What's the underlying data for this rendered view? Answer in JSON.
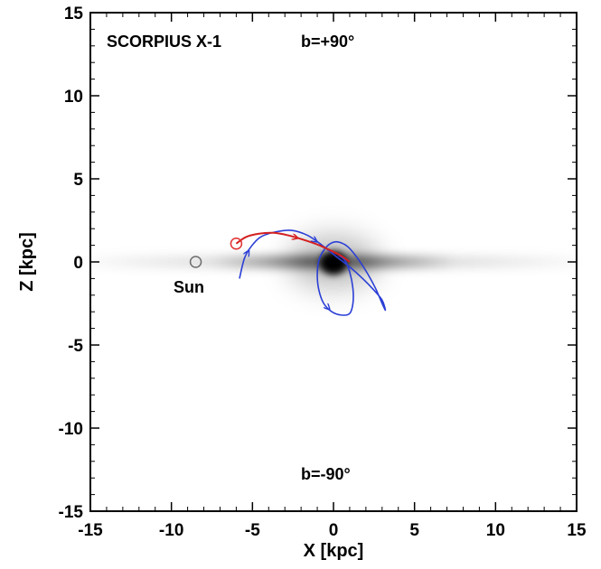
{
  "chart_data": {
    "type": "line",
    "title": "",
    "xlabel": "X [kpc]",
    "ylabel": "Z [kpc]",
    "xlim": [
      -15,
      15
    ],
    "ylim": [
      -15,
      15
    ],
    "x_ticks": [
      -15,
      -10,
      -5,
      0,
      5,
      10,
      15
    ],
    "y_ticks": [
      -15,
      -10,
      -5,
      0,
      5,
      10,
      15
    ],
    "x_tick_labels": [
      "-15",
      "-10",
      "-5",
      "0",
      "5",
      "10",
      "15"
    ],
    "y_tick_labels": [
      "-15",
      "-10",
      "-5",
      "0",
      "5",
      "10",
      "15"
    ],
    "grid": false,
    "background": "grayscale galactic density image: thin disk along Z = 0 with dark bulge at the center",
    "annotations": [
      {
        "text": "SCORPIUS X-1",
        "x": -10.0,
        "y": 13.5
      },
      {
        "text": "b=+90°",
        "x": 1.5,
        "y": 13.5
      },
      {
        "text": "b=-90°",
        "x": 1.5,
        "y": -13.3
      },
      {
        "text": "Sun",
        "x": -8.6,
        "y": -1.2
      }
    ],
    "markers": [
      {
        "label": "Sun",
        "x": -8.5,
        "y": 0.0,
        "shape": "circle",
        "color": "#6e6e6e"
      },
      {
        "label": "",
        "x": -6.0,
        "y": 1.1,
        "shape": "circle",
        "color": "#e03030"
      }
    ],
    "series": [
      {
        "color": "#2b3fd6",
        "x": [
          -5.8,
          -5.5,
          -5.1,
          -4.5,
          -3.6,
          -2.6,
          -1.6,
          -0.7,
          0.2,
          1.0,
          1.8,
          2.5,
          3.0,
          3.2,
          3.0,
          2.6,
          2.1,
          1.5,
          0.9,
          0.3,
          -0.2,
          -0.6,
          -0.9,
          -1.0,
          -0.9,
          -0.6,
          -0.1,
          0.5,
          1.0,
          1.2,
          1.2,
          1.0,
          0.7,
          0.3
        ],
        "y": [
          -1.0,
          0.2,
          0.9,
          1.5,
          1.8,
          1.9,
          1.6,
          1.0,
          0.3,
          -0.3,
          -1.0,
          -1.7,
          -2.3,
          -2.9,
          -2.5,
          -1.6,
          -0.7,
          0.2,
          0.9,
          1.2,
          1.1,
          0.7,
          0.1,
          -0.8,
          -1.7,
          -2.5,
          -3.0,
          -3.2,
          -3.1,
          -2.5,
          -1.6,
          -0.6,
          0.1,
          0.4
        ]
      },
      {
        "color": "#d42020",
        "x": [
          -6.0,
          -5.4,
          -4.6,
          -3.7,
          -2.8,
          -1.9,
          -1.0,
          -0.2,
          0.5,
          1.0
        ],
        "y": [
          1.1,
          1.5,
          1.7,
          1.75,
          1.6,
          1.35,
          1.05,
          0.7,
          0.35,
          0.0
        ]
      }
    ]
  }
}
